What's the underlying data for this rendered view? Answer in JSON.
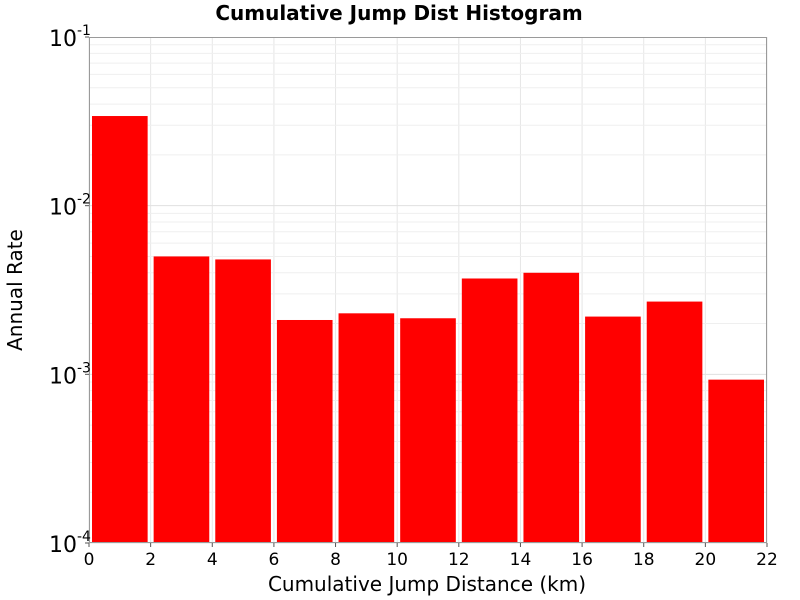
{
  "chart_data": {
    "type": "bar",
    "title": "Cumulative Jump Dist Histogram",
    "xlabel": "Cumulative Jump Distance (km)",
    "ylabel": "Annual Rate",
    "x_scale": "linear",
    "y_scale": "log",
    "xlim": [
      0,
      22
    ],
    "ylim": [
      0.0001,
      0.1
    ],
    "xticks": [
      0,
      2,
      4,
      6,
      8,
      10,
      12,
      14,
      16,
      18,
      20,
      22
    ],
    "yticks": [
      {
        "value": 0.0001,
        "base": "10",
        "exp": "-4"
      },
      {
        "value": 0.001,
        "base": "10",
        "exp": "-3"
      },
      {
        "value": 0.01,
        "base": "10",
        "exp": "-2"
      },
      {
        "value": 0.1,
        "base": "10",
        "exp": "-1"
      }
    ],
    "grid": true,
    "bar_color": "#ff0000",
    "bars": [
      {
        "x0": 0,
        "x1": 2,
        "value": 0.034
      },
      {
        "x0": 2,
        "x1": 4,
        "value": 0.005
      },
      {
        "x0": 4,
        "x1": 6,
        "value": 0.0048
      },
      {
        "x0": 6,
        "x1": 8,
        "value": 0.0021
      },
      {
        "x0": 8,
        "x1": 10,
        "value": 0.0023
      },
      {
        "x0": 10,
        "x1": 12,
        "value": 0.00215
      },
      {
        "x0": 12,
        "x1": 14,
        "value": 0.0037
      },
      {
        "x0": 14,
        "x1": 16,
        "value": 0.004
      },
      {
        "x0": 16,
        "x1": 18,
        "value": 0.0022
      },
      {
        "x0": 18,
        "x1": 20,
        "value": 0.0027
      },
      {
        "x0": 20,
        "x1": 22,
        "value": 0.00093
      }
    ]
  }
}
